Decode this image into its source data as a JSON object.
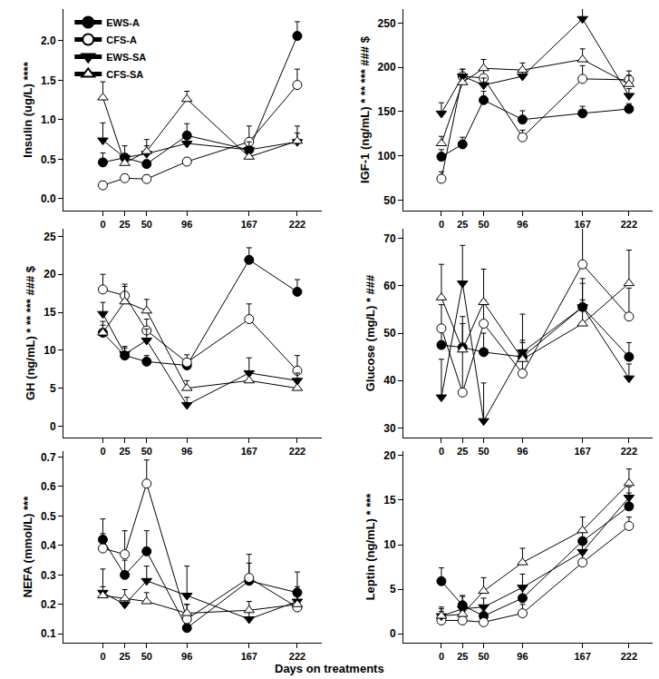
{
  "xlabel": "Days on treatments",
  "chart_data": [
    {
      "type": "line",
      "ylabel": "Insulin (ug/L) ****",
      "legend": "upper left",
      "x": [
        0,
        25,
        50,
        96,
        167,
        222
      ],
      "xlim": [
        -45,
        250
      ],
      "xticks": [
        0,
        25,
        50,
        96,
        167,
        222
      ],
      "ylim": [
        -0.15,
        2.4
      ],
      "yticks": [
        {
          "value": 0,
          "label": "0.0"
        },
        0.5,
        {
          "value": 1,
          "label": "1.0"
        },
        1.5,
        {
          "value": 2,
          "label": "2.0"
        }
      ],
      "series": [
        {
          "name": "EWS-A",
          "color": "#000000",
          "marker": "circle",
          "values": [
            0.46,
            0.52,
            0.44,
            0.8,
            0.62,
            2.06
          ],
          "errors": [
            0.12,
            0.05,
            0.05,
            0.15,
            0.1,
            0.18
          ]
        },
        {
          "name": "CFS-A",
          "color": "#000000",
          "marker": "open circle",
          "values": [
            0.17,
            0.26,
            0.25,
            0.47,
            0.72,
            1.44
          ],
          "errors": [
            0.05,
            0.05,
            0.05,
            0.05,
            0.2,
            0.2
          ]
        },
        {
          "name": "EWS-SA",
          "color": "#000000",
          "marker": "triangle-down",
          "values": [
            0.74,
            0.52,
            0.57,
            0.7,
            0.62,
            0.72
          ],
          "errors": [
            0.22,
            0.15,
            0.1,
            0.08,
            0.1,
            0.2
          ]
        },
        {
          "name": "CFS-SA",
          "color": "#000000",
          "marker": "open triangle-up",
          "values": [
            1.28,
            0.45,
            0.6,
            1.26,
            0.53,
            0.73
          ],
          "errors": [
            0.2,
            0.1,
            0.15,
            0.1,
            0.1,
            0.1
          ]
        }
      ]
    },
    {
      "type": "line",
      "ylabel": "IGF-1 (ng/mL) * ** *** ### $",
      "x": [
        0,
        25,
        50,
        96,
        167,
        222
      ],
      "xlim": [
        -45,
        250
      ],
      "xticks": [
        0,
        25,
        50,
        96,
        167,
        222
      ],
      "ylim": [
        38,
        266
      ],
      "yticks": [
        50,
        100,
        150,
        200,
        250
      ],
      "series": [
        {
          "name": "EWS-A",
          "color": "#000000",
          "marker": "circle",
          "values": [
            99,
            113,
            163,
            141,
            148,
            153
          ],
          "errors": [
            8,
            8,
            10,
            10,
            8,
            6
          ]
        },
        {
          "name": "CFS-A",
          "color": "#000000",
          "marker": "open circle",
          "values": [
            74,
            190,
            188,
            121,
            187,
            186
          ],
          "errors": [
            8,
            8,
            10,
            8,
            15,
            10
          ]
        },
        {
          "name": "EWS-SA",
          "color": "#000000",
          "marker": "triangle-down",
          "values": [
            148,
            190,
            180,
            190,
            255,
            168
          ],
          "errors": [
            12,
            8,
            8,
            6,
            12,
            8
          ]
        },
        {
          "name": "CFS-SA",
          "color": "#000000",
          "marker": "open triangle-up",
          "values": [
            114,
            183,
            199,
            197,
            209,
            181
          ],
          "errors": [
            8,
            8,
            10,
            8,
            12,
            10
          ]
        }
      ]
    },
    {
      "type": "line",
      "ylabel": "GH (ng/mL) * ** *** ### $",
      "x": [
        0,
        25,
        50,
        96,
        167,
        222
      ],
      "xlim": [
        -45,
        250
      ],
      "xticks": [
        0,
        25,
        50,
        96,
        167,
        222
      ],
      "ylim": [
        -1.5,
        26
      ],
      "yticks": [
        0,
        5,
        10,
        15,
        20,
        25
      ],
      "series": [
        {
          "name": "EWS-A",
          "color": "#000000",
          "marker": "circle",
          "values": [
            12.3,
            9.3,
            8.5,
            8.0,
            21.9,
            17.7
          ],
          "errors": [
            1,
            1,
            0.8,
            0.8,
            1.6,
            1.6
          ]
        },
        {
          "name": "CFS-A",
          "color": "#000000",
          "marker": "open circle",
          "values": [
            18.0,
            17.2,
            12.6,
            8.4,
            14.1,
            7.3
          ],
          "errors": [
            2,
            1.5,
            1.5,
            1,
            2,
            2
          ]
        },
        {
          "name": "EWS-SA",
          "color": "#000000",
          "marker": "triangle-down",
          "values": [
            14.8,
            9.5,
            11.3,
            2.8,
            7.0,
            6.0
          ],
          "errors": [
            1.5,
            1,
            1.5,
            1,
            2,
            1
          ]
        },
        {
          "name": "CFS-SA",
          "color": "#000000",
          "marker": "open triangle-up",
          "values": [
            12.3,
            16.4,
            15.2,
            5.0,
            6.0,
            5.0
          ],
          "errors": [
            1.5,
            2,
            1.5,
            1,
            1,
            1
          ]
        }
      ]
    },
    {
      "type": "line",
      "ylabel": "Glucose (mg/L) * ###",
      "x": [
        0,
        25,
        50,
        96,
        167,
        222
      ],
      "xlim": [
        -45,
        250
      ],
      "xticks": [
        0,
        25,
        50,
        96,
        167,
        222
      ],
      "ylim": [
        28,
        72
      ],
      "yticks": [
        30,
        40,
        50,
        60,
        70
      ],
      "series": [
        {
          "name": "EWS-A",
          "color": "#000000",
          "marker": "circle",
          "values": [
            47.5,
            47,
            46,
            45,
            55.5,
            45
          ],
          "errors": [
            3,
            5,
            4,
            3,
            5,
            3
          ]
        },
        {
          "name": "CFS-A",
          "color": "#000000",
          "marker": "open circle",
          "values": [
            51,
            37.5,
            52,
            41.5,
            64.5,
            53.5
          ],
          "errors": [
            5,
            10,
            5,
            5,
            8,
            6
          ]
        },
        {
          "name": "EWS-SA",
          "color": "#000000",
          "marker": "triangle-down",
          "values": [
            36.5,
            60.5,
            31.5,
            46,
            55.5,
            40.5
          ],
          "errors": [
            8,
            8,
            8,
            8,
            6,
            3
          ]
        },
        {
          "name": "CFS-SA",
          "color": "#000000",
          "marker": "open triangle-up",
          "values": [
            57.5,
            46.5,
            56.5,
            44.5,
            52,
            60.5
          ],
          "errors": [
            7,
            7,
            7,
            4,
            5,
            7
          ]
        }
      ]
    },
    {
      "type": "line",
      "ylabel": "NEFA (mmol/L) ***",
      "x": [
        0,
        25,
        50,
        96,
        167,
        222
      ],
      "xlim": [
        -45,
        250
      ],
      "xticks": [
        0,
        25,
        50,
        96,
        167,
        222
      ],
      "ylim": [
        0.07,
        0.72
      ],
      "yticks": [
        0.1,
        0.2,
        0.3,
        0.4,
        0.5,
        0.6,
        0.7
      ],
      "series": [
        {
          "name": "EWS-A",
          "color": "#000000",
          "marker": "circle",
          "values": [
            0.42,
            0.3,
            0.38,
            0.12,
            0.28,
            0.24
          ],
          "errors": [
            0.07,
            0.05,
            0.07,
            0.02,
            0.06,
            0.07
          ]
        },
        {
          "name": "CFS-A",
          "color": "#000000",
          "marker": "open circle",
          "values": [
            0.39,
            0.37,
            0.61,
            0.15,
            0.29,
            0.19
          ],
          "errors": [
            0.05,
            0.08,
            0.08,
            0.05,
            0.08,
            0.05
          ]
        },
        {
          "name": "EWS-SA",
          "color": "#000000",
          "marker": "triangle-down",
          "values": [
            0.24,
            0.2,
            0.28,
            0.23,
            0.15,
            0.21
          ],
          "errors": [
            0.08,
            0.02,
            0.05,
            0.1,
            0.03,
            0.05
          ]
        },
        {
          "name": "CFS-SA",
          "color": "#000000",
          "marker": "open triangle-up",
          "values": [
            0.23,
            0.22,
            0.21,
            0.17,
            0.18,
            0.2
          ],
          "errors": [
            0.03,
            0.03,
            0.03,
            0.03,
            0.03,
            0.03
          ]
        }
      ]
    },
    {
      "type": "line",
      "ylabel": "Leptin (ng/mL) * ***",
      "x": [
        0,
        25,
        50,
        96,
        167,
        222
      ],
      "xlim": [
        -45,
        250
      ],
      "xticks": [
        0,
        25,
        50,
        96,
        167,
        222
      ],
      "ylim": [
        -1,
        20.5
      ],
      "yticks": [
        0,
        5,
        10,
        15,
        20
      ],
      "series": [
        {
          "name": "EWS-A",
          "color": "#000000",
          "marker": "circle",
          "values": [
            5.9,
            3.2,
            2.0,
            4.0,
            10.4,
            14.3
          ],
          "errors": [
            1.5,
            1,
            1,
            1,
            1,
            1.5
          ]
        },
        {
          "name": "CFS-A",
          "color": "#000000",
          "marker": "open circle",
          "values": [
            1.5,
            1.5,
            1.3,
            2.3,
            8.0,
            12.1
          ],
          "errors": [
            1,
            1,
            0.8,
            1,
            1,
            1
          ]
        },
        {
          "name": "EWS-SA",
          "color": "#000000",
          "marker": "triangle-down",
          "values": [
            2.0,
            2.8,
            3.0,
            5.2,
            9.2,
            15.3
          ],
          "errors": [
            1,
            1.5,
            1,
            1.5,
            1,
            1.2
          ]
        },
        {
          "name": "CFS-SA",
          "color": "#000000",
          "marker": "open triangle-up",
          "values": [
            2.0,
            2.2,
            4.8,
            8.0,
            11.6,
            16.9
          ],
          "errors": [
            0.8,
            1,
            1.5,
            1.6,
            1.5,
            1.6
          ]
        }
      ]
    }
  ]
}
